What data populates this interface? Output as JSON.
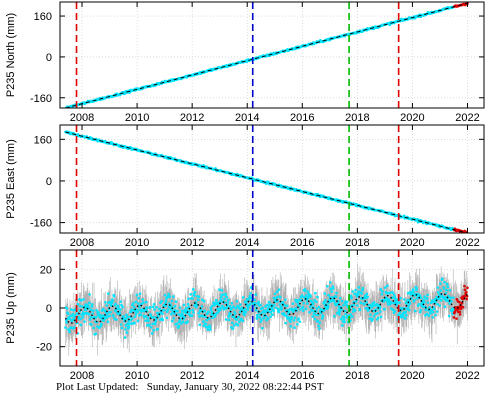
{
  "footer": {
    "label": "Plot Last Updated:",
    "timestamp": "Sunday, January 30, 2022 08:22:44 PST"
  },
  "colors": {
    "data_points": "#00e5ff",
    "error_bars": "#b0b0b0",
    "model_line": "#000000",
    "recent_points": "#e00000",
    "event_red": "#e00000",
    "event_blue": "#0000cc",
    "event_green": "#00bb00"
  },
  "chart_data": [
    {
      "type": "scatter",
      "ylabel": "P235 North (mm)",
      "xlim": [
        2007.2,
        2022.6
      ],
      "ylim": [
        -200,
        215
      ],
      "x_ticks": [
        2008,
        2010,
        2012,
        2014,
        2016,
        2018,
        2020,
        2022
      ],
      "y_ticks": [
        -160,
        0,
        160
      ],
      "grid": true,
      "trend": {
        "x_start": 2007.4,
        "y_start": -200,
        "x_end": 2022.0,
        "y_end": 210
      },
      "noise_mm": 3,
      "error_bar_mm": 2,
      "event_lines": [
        {
          "x": 2007.8,
          "color": "red"
        },
        {
          "x": 2014.2,
          "color": "blue"
        },
        {
          "x": 2017.7,
          "color": "green"
        },
        {
          "x": 2019.5,
          "color": "red"
        }
      ]
    },
    {
      "type": "scatter",
      "ylabel": "P235 East (mm)",
      "xlim": [
        2007.2,
        2022.6
      ],
      "ylim": [
        -200,
        215
      ],
      "x_ticks": [
        2008,
        2010,
        2012,
        2014,
        2016,
        2018,
        2020,
        2022
      ],
      "y_ticks": [
        -160,
        0,
        160
      ],
      "grid": true,
      "trend": {
        "x_start": 2007.4,
        "y_start": 188,
        "x_end": 2022.0,
        "y_end": -200
      },
      "noise_mm": 3,
      "error_bar_mm": 2,
      "event_lines": [
        {
          "x": 2007.8,
          "color": "red"
        },
        {
          "x": 2014.2,
          "color": "blue"
        },
        {
          "x": 2017.7,
          "color": "green"
        },
        {
          "x": 2019.5,
          "color": "red"
        }
      ]
    },
    {
      "type": "scatter",
      "ylabel": "P235 Up (mm)",
      "xlim": [
        2007.2,
        2022.6
      ],
      "ylim": [
        -30,
        30
      ],
      "x_ticks": [
        2008,
        2010,
        2012,
        2014,
        2016,
        2018,
        2020,
        2022
      ],
      "y_ticks": [
        -20,
        0,
        20
      ],
      "grid": true,
      "trend": {
        "x_start": 2007.4,
        "y_start": -4,
        "x_end": 2022.0,
        "y_end": 4
      },
      "seasonal_amplitude_mm": 4,
      "noise_mm": 5,
      "error_bar_mm": 7,
      "event_lines": [
        {
          "x": 2007.8,
          "color": "red"
        },
        {
          "x": 2014.2,
          "color": "blue"
        },
        {
          "x": 2017.7,
          "color": "green"
        },
        {
          "x": 2019.5,
          "color": "red"
        }
      ]
    }
  ]
}
